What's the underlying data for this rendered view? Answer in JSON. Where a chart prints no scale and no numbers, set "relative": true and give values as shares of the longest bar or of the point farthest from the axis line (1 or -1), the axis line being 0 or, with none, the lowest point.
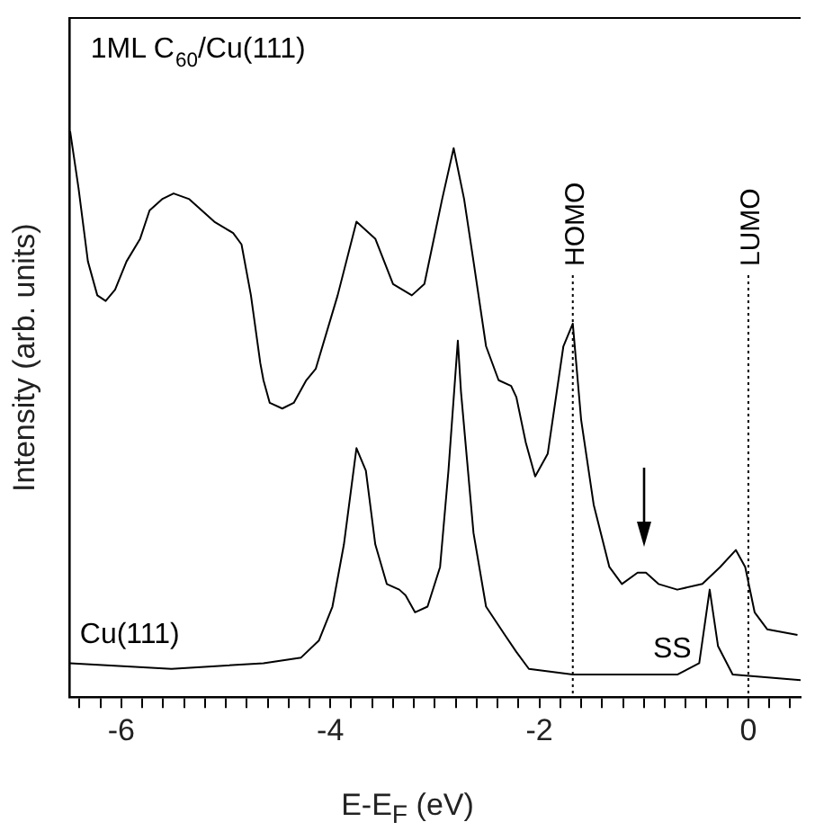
{
  "chart_data": {
    "type": "line",
    "xlabel": "E-E$_{F}$ (eV)",
    "ylabel": "Intensity (arb. units)",
    "relative": true,
    "legend": false,
    "grid": false,
    "marker": "none",
    "line_style": "solid",
    "xlim": [
      -6.5,
      0.5
    ],
    "xticks": [
      {
        "value": -6.4,
        "label": null
      },
      {
        "value": -6.2,
        "label": null
      },
      -6,
      {
        "value": -5.8,
        "label": null
      },
      {
        "value": -5.6,
        "label": null
      },
      {
        "value": -5.4,
        "label": null
      },
      {
        "value": -5.2,
        "label": null
      },
      {
        "value": -5,
        "label": null
      },
      {
        "value": -4.8,
        "label": null
      },
      {
        "value": -4.6,
        "label": null
      },
      {
        "value": -4.4,
        "label": null
      },
      {
        "value": -4.2,
        "label": null
      },
      -4,
      {
        "value": -3.8,
        "label": null
      },
      {
        "value": -3.6,
        "label": null
      },
      {
        "value": -3.4,
        "label": null
      },
      {
        "value": -3.2,
        "label": null
      },
      {
        "value": -3,
        "label": null
      },
      {
        "value": -2.8,
        "label": null
      },
      {
        "value": -2.6,
        "label": null
      },
      {
        "value": -2.4,
        "label": null
      },
      {
        "value": -2.2,
        "label": null
      },
      -2,
      {
        "value": -1.8,
        "label": null
      },
      {
        "value": -1.6,
        "label": null
      },
      {
        "value": -1.4,
        "label": null
      },
      {
        "value": -1.2,
        "label": null
      },
      {
        "value": -1,
        "label": null
      },
      {
        "value": -0.8,
        "label": null
      },
      {
        "value": -0.6,
        "label": null
      },
      {
        "value": -0.4,
        "label": null
      },
      {
        "value": -0.2,
        "label": null
      },
      0,
      {
        "value": 0.2,
        "label": null
      },
      {
        "value": 0.4,
        "label": null
      }
    ],
    "series": [
      {
        "color": "#000000",
        "x": [
          -6.49,
          -6.41,
          -6.32,
          -6.23,
          -6.15,
          -6.06,
          -5.95,
          -5.82,
          -5.73,
          -5.61,
          -5.5,
          -5.35,
          -5.23,
          -5.11,
          -4.93,
          -4.85,
          -4.76,
          -4.67,
          -4.64,
          -4.58,
          -4.46,
          -4.35,
          -4.23,
          -4.14,
          -3.93,
          -3.75,
          -3.57,
          -3.4,
          -3.22,
          -3.1,
          -2.93,
          -2.82,
          -2.72,
          -2.63,
          -2.51,
          -2.39,
          -2.27,
          -2.22,
          -2.13,
          -2.04,
          -1.92,
          -1.77,
          -1.68,
          -1.6,
          -1.48,
          -1.33,
          -1.21,
          -1.06,
          -0.98,
          -0.86,
          -0.68,
          -0.44,
          -0.27,
          -0.12,
          -0.03,
          0.06,
          0.18,
          0.47
        ],
        "values": [
          1.0,
          0.9,
          0.77,
          0.71,
          0.7,
          0.72,
          0.77,
          0.81,
          0.86,
          0.88,
          0.89,
          0.88,
          0.86,
          0.84,
          0.82,
          0.8,
          0.71,
          0.59,
          0.56,
          0.52,
          0.51,
          0.52,
          0.56,
          0.58,
          0.71,
          0.84,
          0.81,
          0.73,
          0.71,
          0.73,
          0.88,
          0.97,
          0.88,
          0.77,
          0.62,
          0.56,
          0.55,
          0.53,
          0.45,
          0.39,
          0.43,
          0.62,
          0.66,
          0.49,
          0.34,
          0.23,
          0.2,
          0.22,
          0.22,
          0.2,
          0.19,
          0.2,
          0.23,
          0.26,
          0.23,
          0.15,
          0.12,
          0.11
        ]
      },
      {
        "color": "#000000",
        "x": [
          -6.49,
          -5.52,
          -4.64,
          -4.28,
          -4.11,
          -3.98,
          -3.87,
          -3.75,
          -3.66,
          -3.57,
          -3.46,
          -3.34,
          -3.28,
          -3.19,
          -3.07,
          -2.95,
          -2.87,
          -2.78,
          -2.75,
          -2.63,
          -2.51,
          -2.33,
          -2.22,
          -2.1,
          -1.68,
          -0.68,
          -0.47,
          -0.37,
          -0.29,
          -0.15,
          0.5
        ],
        "values": [
          0.06,
          0.05,
          0.06,
          0.07,
          0.1,
          0.16,
          0.27,
          0.44,
          0.4,
          0.27,
          0.2,
          0.19,
          0.18,
          0.15,
          0.16,
          0.23,
          0.4,
          0.63,
          0.54,
          0.29,
          0.16,
          0.11,
          0.08,
          0.05,
          0.04,
          0.04,
          0.06,
          0.19,
          0.09,
          0.04,
          0.03
        ]
      }
    ],
    "ref_lines": [
      {
        "axis": "x",
        "value": -1.68,
        "label": "HOMO",
        "line_style": "dotted"
      },
      {
        "axis": "x",
        "value": 0,
        "label": "LUMO",
        "line_style": "dotted"
      }
    ],
    "annotations": [
      "1ML C$_{60}$/Cu(111)",
      "Cu(111)",
      "SS"
    ]
  }
}
